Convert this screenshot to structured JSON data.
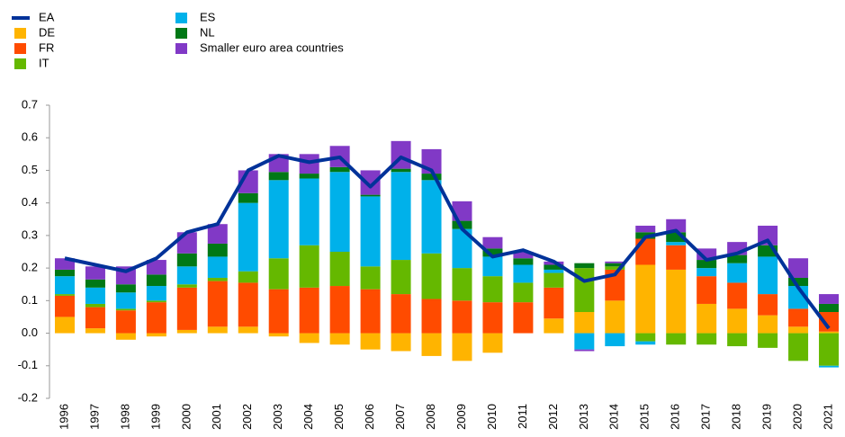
{
  "chart_data": {
    "type": "stacked-bar-line",
    "categories": [
      "1996",
      "1997",
      "1998",
      "1999",
      "2000",
      "2001",
      "2002",
      "2003",
      "2004",
      "2005",
      "2006",
      "2007",
      "2008",
      "2009",
      "2010",
      "2011",
      "2012",
      "2013",
      "2014",
      "2015",
      "2016",
      "2017",
      "2018",
      "2019",
      "2020",
      "2021"
    ],
    "line": {
      "name": "EA",
      "color": "#003299",
      "values": [
        0.23,
        0.21,
        0.19,
        0.23,
        0.31,
        0.335,
        0.5,
        0.545,
        0.525,
        0.54,
        0.45,
        0.54,
        0.5,
        0.32,
        0.235,
        0.255,
        0.22,
        0.16,
        0.18,
        0.295,
        0.315,
        0.225,
        0.245,
        0.285,
        0.14,
        0.015
      ]
    },
    "series": [
      {
        "name": "DE",
        "color": "#ffb400",
        "values": [
          0.05,
          0.015,
          -0.02,
          -0.01,
          0.01,
          0.02,
          0.02,
          -0.01,
          -0.03,
          -0.035,
          -0.05,
          -0.055,
          -0.07,
          -0.085,
          -0.06,
          0.0,
          0.045,
          0.065,
          0.1,
          0.21,
          0.195,
          0.09,
          0.075,
          0.055,
          0.02,
          0.005
        ]
      },
      {
        "name": "FR",
        "color": "#ff4b00",
        "values": [
          0.065,
          0.065,
          0.07,
          0.095,
          0.13,
          0.14,
          0.135,
          0.135,
          0.14,
          0.145,
          0.135,
          0.12,
          0.105,
          0.1,
          0.095,
          0.095,
          0.095,
          0.0,
          0.095,
          0.08,
          0.075,
          0.085,
          0.08,
          0.065,
          0.055,
          0.06
        ]
      },
      {
        "name": "IT",
        "color": "#65b800",
        "values": [
          0.005,
          0.01,
          0.005,
          0.005,
          0.01,
          0.01,
          0.035,
          0.095,
          0.13,
          0.105,
          0.07,
          0.105,
          0.14,
          0.1,
          0.08,
          0.06,
          0.045,
          0.135,
          0.01,
          -0.025,
          -0.035,
          -0.035,
          -0.04,
          -0.045,
          -0.085,
          -0.1
        ]
      },
      {
        "name": "ES",
        "color": "#00b1ea",
        "values": [
          0.055,
          0.05,
          0.05,
          0.045,
          0.055,
          0.065,
          0.21,
          0.24,
          0.205,
          0.245,
          0.215,
          0.27,
          0.225,
          0.12,
          0.06,
          0.055,
          0.01,
          -0.05,
          -0.04,
          -0.01,
          0.01,
          0.025,
          0.06,
          0.115,
          0.07,
          -0.005
        ]
      },
      {
        "name": "NL",
        "color": "#007816",
        "values": [
          0.02,
          0.025,
          0.025,
          0.035,
          0.04,
          0.04,
          0.03,
          0.025,
          0.015,
          0.015,
          0.005,
          0.01,
          0.02,
          0.025,
          0.025,
          0.02,
          0.015,
          0.015,
          0.01,
          0.02,
          0.03,
          0.025,
          0.025,
          0.035,
          0.025,
          0.025
        ]
      },
      {
        "name": "Smaller euro area countries",
        "color": "#8139c6",
        "values": [
          0.035,
          0.04,
          0.055,
          0.045,
          0.065,
          0.06,
          0.07,
          0.055,
          0.06,
          0.065,
          0.075,
          0.085,
          0.075,
          0.06,
          0.035,
          0.02,
          0.01,
          -0.005,
          0.005,
          0.02,
          0.04,
          0.035,
          0.04,
          0.06,
          0.06,
          0.03
        ]
      }
    ],
    "ylim": [
      -0.2,
      0.7
    ],
    "yticks": [
      -0.2,
      -0.1,
      {
        "value": 0,
        "label": "0.0"
      },
      0.1,
      0.2,
      0.3,
      0.4,
      0.5,
      0.6,
      0.7
    ]
  }
}
